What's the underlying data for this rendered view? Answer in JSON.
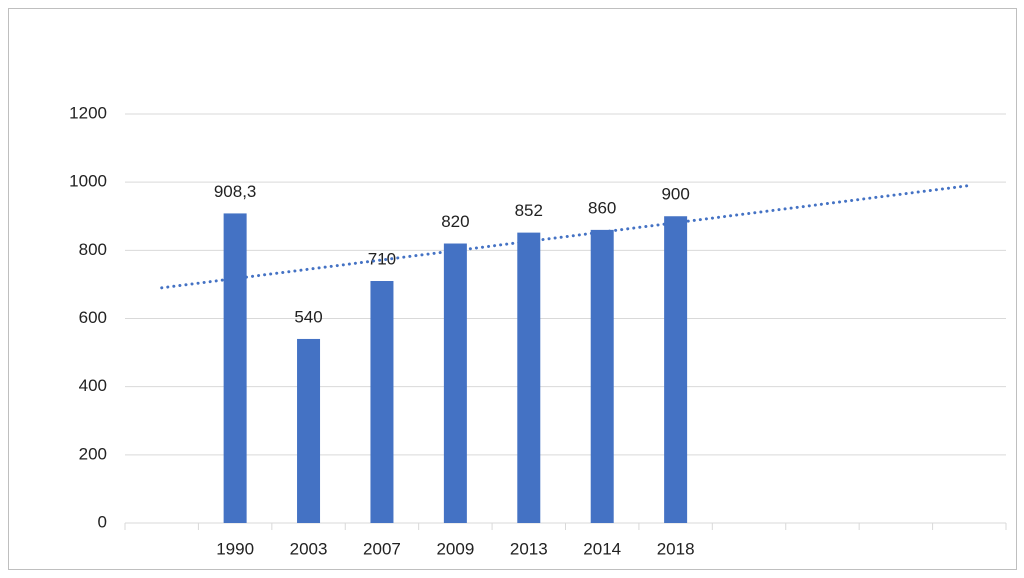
{
  "chart_data": {
    "type": "bar",
    "categories": [
      null,
      "1990",
      "2003",
      "2007",
      "2009",
      "2013",
      "2014",
      "2018",
      null,
      null,
      null,
      null
    ],
    "values": [
      null,
      908.3,
      540,
      710,
      820,
      852,
      860,
      900,
      null,
      null,
      null,
      null
    ],
    "value_labels": [
      null,
      "908,3",
      "540",
      "710",
      "820",
      "852",
      "860",
      "900",
      null,
      null,
      null,
      null
    ],
    "color": "#4472c4",
    "ylim": [
      0,
      1200
    ],
    "yticks": [
      0,
      200,
      400,
      600,
      800,
      1000,
      1200
    ],
    "grid": true,
    "trendline": {
      "color": "#4472c4",
      "values": [
        690,
        990
      ]
    }
  }
}
